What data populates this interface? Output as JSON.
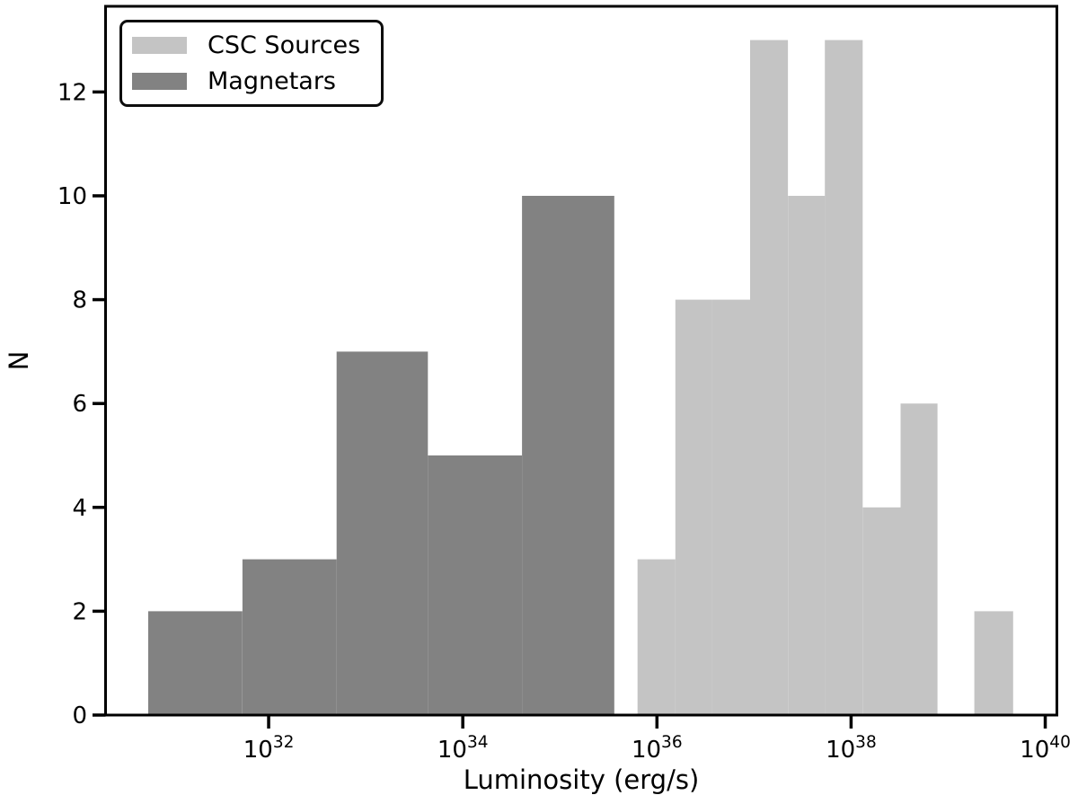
{
  "chart_data": {
    "type": "histogram",
    "title": "",
    "xlabel": "Luminosity (erg/s)",
    "ylabel": "N",
    "x_scale": "log10",
    "xlim_log10": [
      30.32,
      40.12
    ],
    "ylim": [
      0,
      13.65
    ],
    "x_ticks": {
      "base": "10",
      "exponents": [
        "32",
        "34",
        "36",
        "38",
        "40"
      ]
    },
    "y_ticks": [
      "0",
      "2",
      "4",
      "6",
      "8",
      "10",
      "12"
    ],
    "grid": false,
    "legend_position": "upper-left",
    "axis_color": "#000000",
    "background_color": "#ffffff",
    "series": [
      {
        "name": "CSC Sources",
        "color": "#c4c4c4",
        "log10_bin_edges": [
          35.8,
          36.19,
          36.57,
          36.96,
          37.35,
          37.73,
          38.12,
          38.51,
          38.89,
          39.27,
          39.67
        ],
        "counts": [
          3,
          8,
          8,
          13,
          10,
          13,
          4,
          6,
          0,
          2
        ]
      },
      {
        "name": "Magnetars",
        "color": "#828282",
        "log10_bin_edges": [
          30.76,
          31.73,
          32.7,
          33.64,
          34.61,
          35.56
        ],
        "counts": [
          2,
          3,
          7,
          5,
          10
        ]
      }
    ]
  }
}
